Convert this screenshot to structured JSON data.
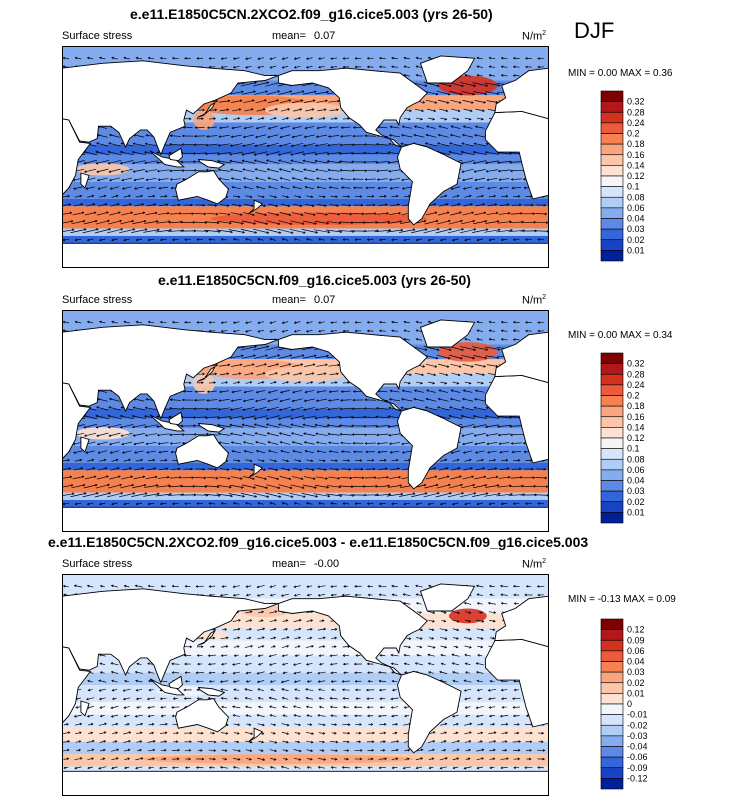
{
  "season": "DJF",
  "panels": [
    {
      "title": "e.e11.E1850C5CN.2XCO2.f09_g16.cice5.003 (yrs 26-50)",
      "variable": "Surface stress",
      "mean_label": "mean=",
      "mean_value": "0.07",
      "units_base": "N/m",
      "units_exp": "2",
      "min_max": "MIN =  0.00 MAX =  0.36",
      "colorbar_labels": [
        "0.32",
        "0.28",
        "0.24",
        "0.2",
        "0.18",
        "0.16",
        "0.14",
        "0.12",
        "0.1",
        "0.08",
        "0.06",
        "0.04",
        "0.03",
        "0.02",
        "0.01"
      ]
    },
    {
      "title": "e.e11.E1850C5CN.f09_g16.cice5.003 (yrs 26-50)",
      "variable": "Surface stress",
      "mean_label": "mean=",
      "mean_value": "0.07",
      "units_base": "N/m",
      "units_exp": "2",
      "min_max": "MIN =  0.00 MAX =  0.34",
      "colorbar_labels": [
        "0.32",
        "0.28",
        "0.24",
        "0.2",
        "0.18",
        "0.16",
        "0.14",
        "0.12",
        "0.1",
        "0.08",
        "0.06",
        "0.04",
        "0.03",
        "0.02",
        "0.01"
      ]
    },
    {
      "title": "e.e11.E1850C5CN.2XCO2.f09_g16.cice5.003 - e.e11.E1850C5CN.f09_g16.cice5.003",
      "variable": "Surface stress",
      "mean_label": "mean=",
      "mean_value": "-0.00",
      "units_base": "N/m",
      "units_exp": "2",
      "min_max": "MIN =  -0.13 MAX =  0.09",
      "colorbar_labels": [
        "0.12",
        "0.09",
        "0.06",
        "0.04",
        "0.03",
        "0.02",
        "0.01",
        "0",
        "-0.01",
        "-0.02",
        "-0.03",
        "-0.04",
        "-0.06",
        "-0.09",
        "-0.12"
      ]
    }
  ],
  "colors": {
    "abs_scale": [
      "#7f0000",
      "#b2181b",
      "#d6301f",
      "#ec5a3c",
      "#f4814f",
      "#f9a57d",
      "#fbc6aa",
      "#fde2d2",
      "#f5f5f5",
      "#d5e5fb",
      "#b0cdf6",
      "#86acf0",
      "#5c8ae4",
      "#3366d9",
      "#1a42c4",
      "#00209a"
    ],
    "diff_scale": [
      "#7f0000",
      "#b2181b",
      "#d6301f",
      "#ec5a3c",
      "#f4814f",
      "#f9a57d",
      "#fbc6aa",
      "#fde2d2",
      "#f2f6fc",
      "#d5e5fb",
      "#b0cdf6",
      "#86acf0",
      "#5c8ae4",
      "#3366d9",
      "#1a42c4",
      "#00209a"
    ],
    "land": "#ffffff",
    "coast": "#000000"
  }
}
